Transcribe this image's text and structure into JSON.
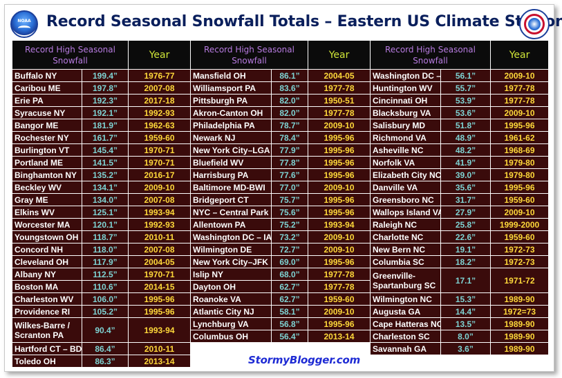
{
  "title": "Record Seasonal Snowfall Totals – Eastern US Climate Stations",
  "logos": {
    "left": "NOAA",
    "right": "National Weather Service"
  },
  "headers": {
    "record": "Record High Seasonal Snowfall",
    "year": "Year"
  },
  "credit": "StormyBlogger.com",
  "colors": {
    "cell_bg": "#3a0b0b",
    "header_bg": "#0b0b0b",
    "station": "#ffffff",
    "snowfall": "#7ed3d3",
    "year": "#ffd93a",
    "header_record": "#b77be0",
    "header_year": "#d0e638",
    "title": "#0a1f5c",
    "credit": "#1e2bd4"
  },
  "columns": [
    {
      "rows": [
        {
          "station": "Buffalo NY",
          "snowfall": "199.4”",
          "year": "1976-77"
        },
        {
          "station": "Caribou ME",
          "snowfall": "197.8”",
          "year": "2007-08"
        },
        {
          "station": "Erie PA",
          "snowfall": "192.3”",
          "year": "2017-18"
        },
        {
          "station": "Syracuse NY",
          "snowfall": "192.1”",
          "year": "1992-93"
        },
        {
          "station": "Bangor ME",
          "snowfall": "181.9”",
          "year": "1962-63"
        },
        {
          "station": "Rochester NY",
          "snowfall": "161.7”",
          "year": "1959-60"
        },
        {
          "station": "Burlington VT",
          "snowfall": "145.4”",
          "year": "1970-71"
        },
        {
          "station": "Portland ME",
          "snowfall": "141.5”",
          "year": "1970-71"
        },
        {
          "station": "Binghamton NY",
          "snowfall": "135.2”",
          "year": "2016-17"
        },
        {
          "station": "Beckley WV",
          "snowfall": "134.1”",
          "year": "2009-10"
        },
        {
          "station": "Gray ME",
          "snowfall": "134.0”",
          "year": "2007-08"
        },
        {
          "station": "Elkins WV",
          "snowfall": "125.1”",
          "year": "1993-94"
        },
        {
          "station": "Worcester MA",
          "snowfall": "120.1”",
          "year": "1992-93"
        },
        {
          "station": "Youngstown OH",
          "snowfall": "118.7”",
          "year": "2010-11"
        },
        {
          "station": "Concord NH",
          "snowfall": "118.0”",
          "year": "2007-08"
        },
        {
          "station": "Cleveland OH",
          "snowfall": "117.9”",
          "year": "2004-05"
        },
        {
          "station": "Albany NY",
          "snowfall": "112.5”",
          "year": "1970-71"
        },
        {
          "station": "Boston MA",
          "snowfall": "110.6”",
          "year": "2014-15"
        },
        {
          "station": "Charleston WV",
          "snowfall": "106.0”",
          "year": "1995-96"
        },
        {
          "station": "Providence RI",
          "snowfall": "105.2”",
          "year": "1995-96"
        },
        {
          "station": "Wilkes-Barre / Scranton PA",
          "snowfall": "90.4”",
          "year": "1993-94"
        },
        {
          "station": "Hartford CT – BDL",
          "snowfall": "86.4”",
          "year": "2010-11"
        },
        {
          "station": "Toledo OH",
          "snowfall": "86.3”",
          "year": "2013-14"
        }
      ]
    },
    {
      "rows": [
        {
          "station": "Mansfield OH",
          "snowfall": "86.1”",
          "year": "2004-05"
        },
        {
          "station": "Williamsport PA",
          "snowfall": "83.6”",
          "year": "1977-78"
        },
        {
          "station": "Pittsburgh PA",
          "snowfall": "82.0”",
          "year": "1950-51"
        },
        {
          "station": "Akron-Canton OH",
          "snowfall": "82.0”",
          "year": "1977-78"
        },
        {
          "station": "Philadelphia PA",
          "snowfall": "78.7”",
          "year": "2009-10"
        },
        {
          "station": "Newark NJ",
          "snowfall": "78.4”",
          "year": "1995-96"
        },
        {
          "station": "New York City–LGA",
          "snowfall": "77.9”",
          "year": "1995-96"
        },
        {
          "station": "Bluefield WV",
          "snowfall": "77.8”",
          "year": "1995-96"
        },
        {
          "station": "Harrisburg PA",
          "snowfall": "77.6”",
          "year": "1995-96"
        },
        {
          "station": "Baltimore MD-BWI",
          "snowfall": "77.0”",
          "year": "2009-10"
        },
        {
          "station": "Bridgeport CT",
          "snowfall": "75.7”",
          "year": "1995-96"
        },
        {
          "station": "NYC – Central Park",
          "snowfall": "75.6”",
          "year": "1995-96"
        },
        {
          "station": "Allentown PA",
          "snowfall": "75.2”",
          "year": "1993-94"
        },
        {
          "station": "Washington DC – IAD",
          "snowfall": "73.2”",
          "year": "2009-10"
        },
        {
          "station": "Wilmington DE",
          "snowfall": "72.7”",
          "year": "2009-10"
        },
        {
          "station": "New York City–JFK",
          "snowfall": "69.0”",
          "year": "1995-96"
        },
        {
          "station": "Islip NY",
          "snowfall": "68.0”",
          "year": "1977-78"
        },
        {
          "station": "Dayton OH",
          "snowfall": "62.7”",
          "year": "1977-78"
        },
        {
          "station": "Roanoke VA",
          "snowfall": "62.7”",
          "year": "1959-60"
        },
        {
          "station": "Atlantic City NJ",
          "snowfall": "58.1”",
          "year": "2009-10"
        },
        {
          "station": "Lynchburg VA",
          "snowfall": "56.8”",
          "year": "1995-96"
        },
        {
          "station": "Columbus OH",
          "snowfall": "56.4”",
          "year": "2013-14"
        }
      ]
    },
    {
      "rows": [
        {
          "station": "Washington DC – DCA",
          "snowfall": "56.1”",
          "year": "2009-10"
        },
        {
          "station": "Huntington WV",
          "snowfall": "55.7”",
          "year": "1977-78"
        },
        {
          "station": "Cincinnati OH",
          "snowfall": "53.9”",
          "year": "1977-78"
        },
        {
          "station": "Blacksburg VA",
          "snowfall": "53.6”",
          "year": "2009-10"
        },
        {
          "station": "Salisbury MD",
          "snowfall": "51.8”",
          "year": "1995-96"
        },
        {
          "station": "Richmond VA",
          "snowfall": "48.9”",
          "year": "1961-62"
        },
        {
          "station": "Asheville NC",
          "snowfall": "48.2”",
          "year": "1968-69"
        },
        {
          "station": "Norfolk VA",
          "snowfall": "41.9”",
          "year": "1979-80"
        },
        {
          "station": "Elizabeth City NC",
          "snowfall": "39.0”",
          "year": "1979-80"
        },
        {
          "station": "Danville VA",
          "snowfall": "35.6”",
          "year": "1995-96"
        },
        {
          "station": "Greensboro NC",
          "snowfall": "31.7”",
          "year": "1959-60"
        },
        {
          "station": "Wallops Island VA",
          "snowfall": "27.9”",
          "year": "2009-10"
        },
        {
          "station": "Raleigh NC",
          "snowfall": "25.8”",
          "year": "1999-2000"
        },
        {
          "station": "Charlotte NC",
          "snowfall": "22.6”",
          "year": "1959-60"
        },
        {
          "station": "New Bern NC",
          "snowfall": "19.1”",
          "year": "1972-73"
        },
        {
          "station": "Columbia SC",
          "snowfall": "18.2”",
          "year": "1972-73"
        },
        {
          "station": "Greenville-Spartanburg SC",
          "snowfall": "17.1”",
          "year": "1971-72"
        },
        {
          "station": "Wilmington NC",
          "snowfall": "15.3”",
          "year": "1989-90"
        },
        {
          "station": "Augusta GA",
          "snowfall": "14.4”",
          "year": "1972=73"
        },
        {
          "station": "Cape Hatteras NC",
          "snowfall": "13.5”",
          "year": "1989-90"
        },
        {
          "station": "Charleston SC",
          "snowfall": "8.0”",
          "year": "1989-90"
        },
        {
          "station": "Savannah GA",
          "snowfall": "3.6”",
          "year": "1989-90"
        }
      ]
    }
  ]
}
